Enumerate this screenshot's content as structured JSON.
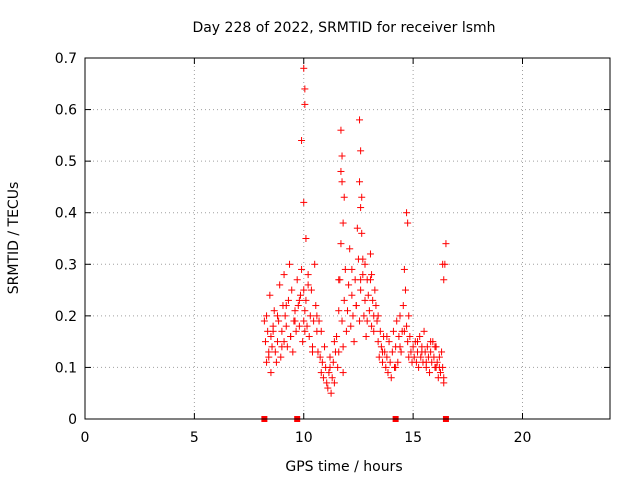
{
  "chart_data": {
    "type": "scatter",
    "title": "Day 228 of 2022, SRMTID for receiver lsmh",
    "xlabel": "GPS time / hours",
    "ylabel": "SRMTID / TECUs",
    "xlim": [
      0,
      24
    ],
    "ylim": [
      0,
      0.7
    ],
    "xticks": [
      "0",
      "5",
      "10",
      "15",
      "20"
    ],
    "yticks": [
      "0",
      "0.1",
      "0.2",
      "0.3",
      "0.4",
      "0.5",
      "0.6",
      "0.7"
    ],
    "grid": true,
    "marker": "+",
    "color": "#ff0000",
    "series": [
      {
        "x": [
          8.2,
          8.25,
          8.3,
          8.3,
          8.35,
          8.4,
          8.45,
          8.5,
          8.5,
          8.55,
          8.6,
          8.65,
          8.7,
          8.75,
          8.8,
          8.85,
          8.9,
          8.95,
          9.0,
          9.05,
          9.1,
          9.1,
          9.15,
          9.2,
          9.25,
          9.3,
          9.35,
          9.4,
          9.45,
          9.5,
          9.55,
          9.6,
          9.65,
          9.7,
          9.75,
          9.8,
          9.85,
          9.9,
          9.95,
          10.0,
          10.0,
          10.0,
          10.05,
          10.05,
          10.05,
          10.1,
          10.1,
          10.15,
          10.2,
          10.25,
          10.3,
          10.35,
          10.4,
          10.45,
          10.5,
          10.55,
          10.6,
          10.65,
          10.7,
          10.75,
          10.8,
          10.85,
          10.9,
          10.95,
          11.0,
          11.05,
          11.1,
          11.15,
          11.2,
          11.25,
          11.3,
          11.35,
          11.4,
          11.45,
          11.5,
          11.55,
          11.6,
          11.65,
          11.7,
          11.75,
          11.8,
          11.85,
          11.9,
          11.95,
          12.0,
          12.05,
          12.1,
          12.15,
          12.2,
          12.25,
          12.3,
          12.35,
          12.4,
          12.45,
          12.5,
          12.55,
          12.6,
          12.65,
          12.7,
          12.75,
          12.8,
          12.85,
          12.9,
          12.95,
          13.0,
          13.05,
          13.1,
          13.15,
          13.2,
          13.25,
          13.3,
          13.35,
          13.4,
          13.45,
          13.5,
          13.55,
          13.6,
          13.65,
          13.7,
          13.75,
          13.8,
          13.85,
          13.9,
          13.95,
          14.0,
          14.05,
          14.1,
          14.15,
          14.2,
          14.25,
          14.3,
          14.35,
          14.4,
          14.45,
          14.5,
          14.55,
          14.6,
          14.65,
          14.7,
          14.75,
          14.8,
          14.85,
          14.9,
          14.95,
          15.0,
          15.05,
          15.1,
          15.15,
          15.2,
          15.25,
          15.3,
          15.35,
          15.4,
          15.45,
          15.5,
          15.55,
          15.6,
          15.65,
          15.7,
          15.75,
          15.8,
          15.85,
          15.9,
          15.95,
          16.0,
          16.05,
          16.1,
          16.15,
          16.2,
          16.25,
          16.3,
          16.35,
          16.4,
          16.45,
          16.5,
          8.4,
          8.6,
          8.8,
          9.0,
          9.2,
          9.4,
          9.6,
          9.8,
          10.2,
          10.4,
          10.6,
          10.8,
          11.2,
          11.4,
          11.6,
          11.8,
          12.2,
          12.4,
          12.6,
          12.8,
          13.2,
          13.4,
          13.6,
          13.8,
          14.2,
          14.4,
          14.6,
          14.8,
          15.2,
          15.4,
          15.6,
          15.8,
          16.2,
          16.4,
          11.7,
          11.75,
          11.7,
          11.75,
          12.55,
          12.6,
          12.55,
          12.6,
          12.65,
          11.85,
          11.8,
          14.7,
          14.75,
          10.0,
          10.05,
          9.9,
          13.1,
          13.05,
          12.9,
          16.0,
          16.05,
          16.35,
          16.4,
          12.7,
          11.6
        ],
        "y": [
          0.19,
          0.15,
          0.11,
          0.2,
          0.17,
          0.12,
          0.24,
          0.09,
          0.16,
          0.14,
          0.18,
          0.21,
          0.13,
          0.11,
          0.15,
          0.19,
          0.26,
          0.12,
          0.17,
          0.22,
          0.28,
          0.15,
          0.2,
          0.18,
          0.14,
          0.23,
          0.3,
          0.16,
          0.25,
          0.13,
          0.19,
          0.21,
          0.17,
          0.27,
          0.22,
          0.18,
          0.24,
          0.29,
          0.15,
          0.42,
          0.25,
          0.19,
          0.61,
          0.21,
          0.17,
          0.35,
          0.23,
          0.18,
          0.28,
          0.16,
          0.2,
          0.25,
          0.14,
          0.19,
          0.3,
          0.22,
          0.17,
          0.13,
          0.19,
          0.12,
          0.09,
          0.11,
          0.08,
          0.14,
          0.1,
          0.07,
          0.06,
          0.09,
          0.12,
          0.05,
          0.08,
          0.11,
          0.07,
          0.13,
          0.16,
          0.1,
          0.21,
          0.27,
          0.34,
          0.19,
          0.14,
          0.23,
          0.29,
          0.17,
          0.21,
          0.26,
          0.33,
          0.18,
          0.24,
          0.2,
          0.15,
          0.27,
          0.22,
          0.37,
          0.31,
          0.19,
          0.25,
          0.43,
          0.28,
          0.2,
          0.23,
          0.16,
          0.19,
          0.24,
          0.21,
          0.27,
          0.18,
          0.23,
          0.2,
          0.25,
          0.22,
          0.19,
          0.15,
          0.12,
          0.17,
          0.14,
          0.11,
          0.16,
          0.13,
          0.1,
          0.12,
          0.09,
          0.15,
          0.11,
          0.08,
          0.13,
          0.17,
          0.1,
          0.14,
          0.19,
          0.11,
          0.16,
          0.2,
          0.13,
          0.17,
          0.22,
          0.29,
          0.25,
          0.18,
          0.15,
          0.12,
          0.16,
          0.13,
          0.11,
          0.14,
          0.12,
          0.15,
          0.11,
          0.13,
          0.1,
          0.16,
          0.12,
          0.14,
          0.11,
          0.17,
          0.13,
          0.1,
          0.14,
          0.12,
          0.09,
          0.13,
          0.11,
          0.15,
          0.12,
          0.1,
          0.14,
          0.11,
          0.08,
          0.12,
          0.09,
          0.13,
          0.1,
          0.07,
          0.3,
          0.34,
          0.13,
          0.17,
          0.2,
          0.14,
          0.22,
          0.16,
          0.19,
          0.23,
          0.26,
          0.13,
          0.2,
          0.17,
          0.1,
          0.15,
          0.13,
          0.09,
          0.29,
          0.22,
          0.27,
          0.3,
          0.17,
          0.2,
          0.13,
          0.16,
          0.1,
          0.14,
          0.17,
          0.2,
          0.15,
          0.13,
          0.11,
          0.15,
          0.1,
          0.08,
          0.56,
          0.51,
          0.48,
          0.46,
          0.58,
          0.52,
          0.46,
          0.41,
          0.36,
          0.43,
          0.38,
          0.4,
          0.38,
          0.68,
          0.64,
          0.54,
          0.28,
          0.32,
          0.27,
          0.14,
          0.1,
          0.3,
          0.27,
          0.31,
          0.27
        ]
      }
    ],
    "zero_markers_x": [
      8.2,
      9.7,
      14.2,
      16.5
    ]
  }
}
